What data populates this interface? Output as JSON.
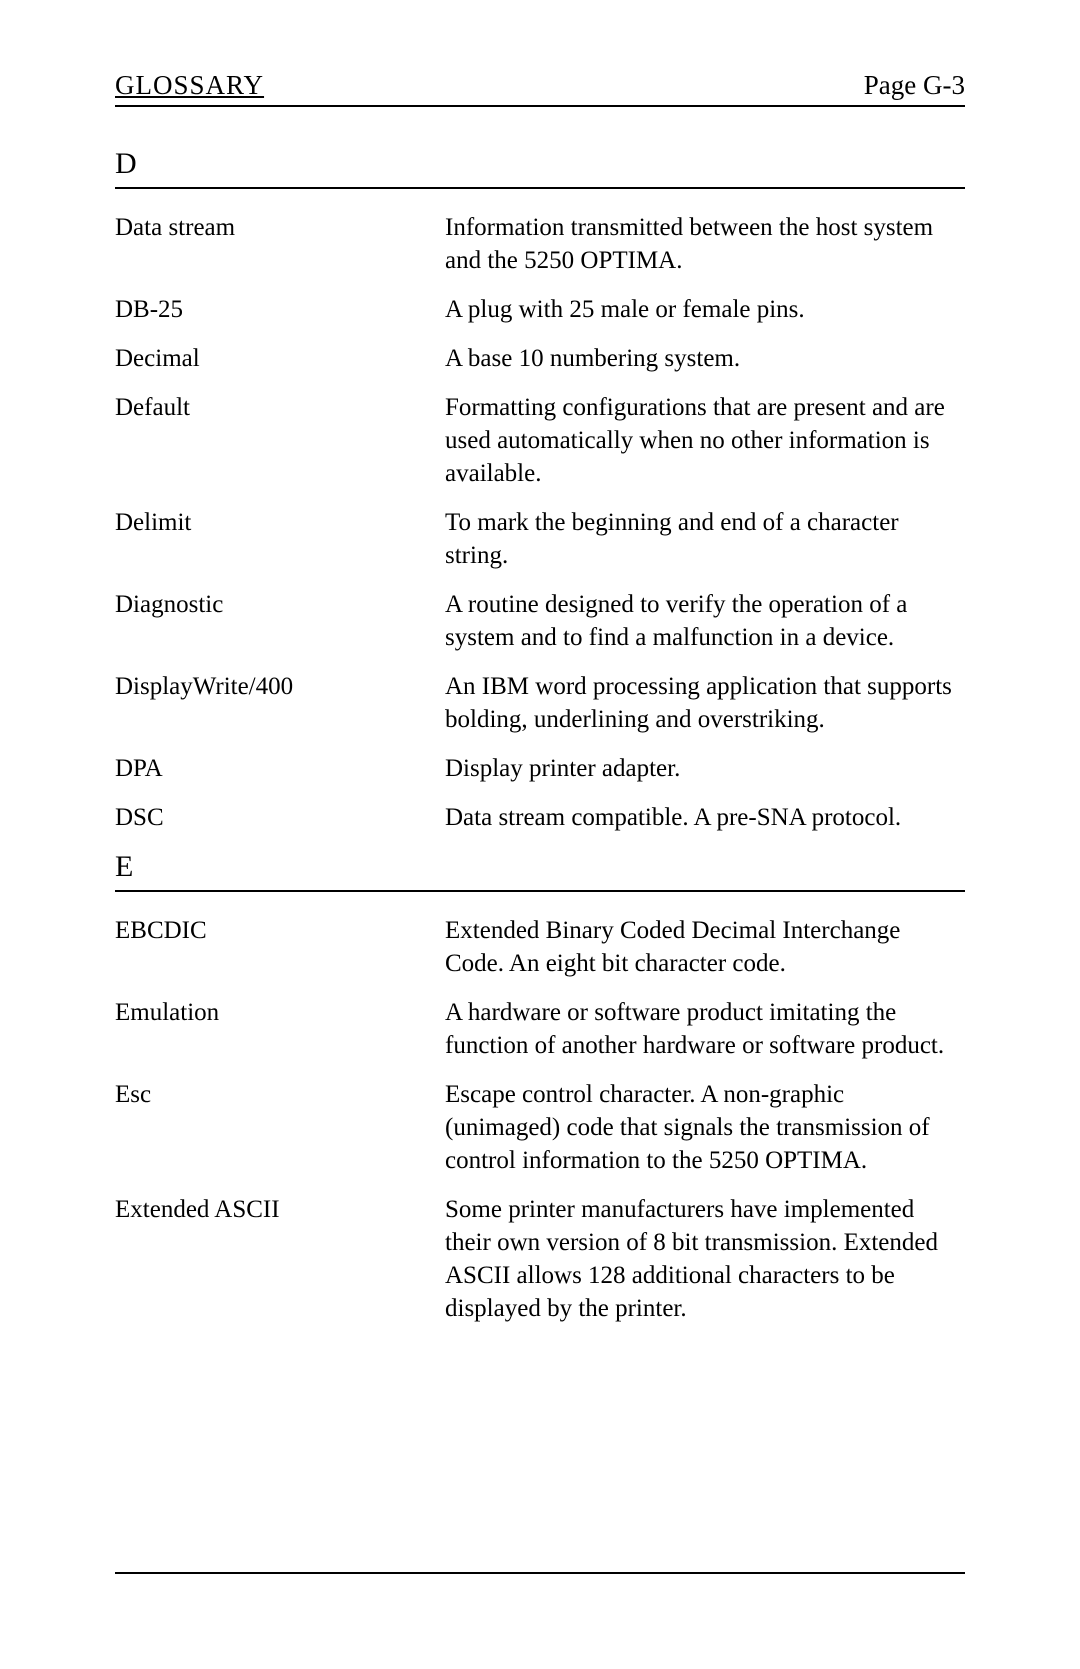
{
  "header": {
    "left": "GLOSSARY",
    "right": "Page G-3"
  },
  "sections": [
    {
      "letter": "D",
      "entries": [
        {
          "term": "Data  stream",
          "definition": "Information transmitted between the host system and the 5250 OPTIMA."
        },
        {
          "term": "DB-25",
          "definition": "A plug with 25 male or female pins."
        },
        {
          "term": "Decimal",
          "definition": "A base 10 numbering system."
        },
        {
          "term": "Default",
          "definition": "Formatting configurations that are present and are used automatically when no other information is available."
        },
        {
          "term": "Delimit",
          "definition": "To mark the beginning and end of a character string."
        },
        {
          "term": "Diagnostic",
          "definition": "A routine designed to verify the operation of a system and to find a malfunction in a device."
        },
        {
          "term": "DisplayWrite/400",
          "definition": "An IBM word processing application that supports bolding, underlining and overstriking."
        },
        {
          "term": "DPA",
          "definition": "Display printer adapter."
        },
        {
          "term": "DSC",
          "definition": "Data stream compatible. A pre-SNA protocol."
        }
      ]
    },
    {
      "letter": "E",
      "entries": [
        {
          "term": "EBCDIC",
          "definition": "Extended Binary Coded Decimal Interchange Code. An eight bit character code."
        },
        {
          "term": "Emulation",
          "definition": "A hardware or software product imitating the function of another hardware or software product."
        },
        {
          "term": "Esc",
          "definition": "Escape control character. A non-graphic (unimaged) code that signals the transmission of control information to the 5250 OPTIMA."
        },
        {
          "term": "Extended  ASCII",
          "definition": "Some printer manufacturers have implemented their own version of 8 bit transmission. Extended ASCII allows 128 additional characters to be displayed by the printer."
        }
      ]
    }
  ]
}
